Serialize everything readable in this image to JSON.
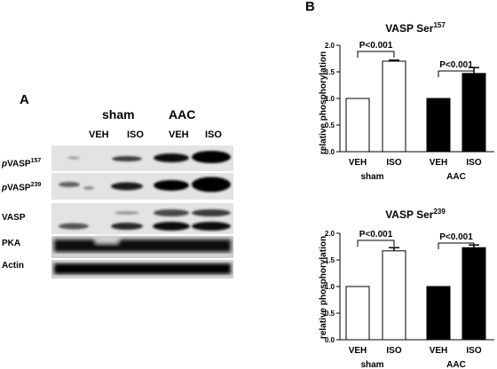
{
  "panel_a": {
    "letter": "A",
    "groups": [
      "sham",
      "AAC"
    ],
    "lanes": [
      "VEH",
      "ISO",
      "VEH",
      "ISO"
    ],
    "rows": [
      {
        "prefix": "p",
        "name": "VASP",
        "sup": "157"
      },
      {
        "prefix": "p",
        "name": "VASP",
        "sup": "239"
      },
      {
        "prefix": "",
        "name": "VASP",
        "sup": ""
      },
      {
        "prefix": "",
        "name": "PKA",
        "sup": ""
      },
      {
        "prefix": "",
        "name": "Actin",
        "sup": ""
      }
    ]
  },
  "panel_b": {
    "letter": "B"
  },
  "chart_data": [
    {
      "type": "bar",
      "title": "VASP Ser",
      "title_sup": "157",
      "ylabel": "relative phosphorylation",
      "ylim": [
        0,
        2.0
      ],
      "yticks": [
        "0.0",
        "0.5",
        "1.0",
        "1.5",
        "2.0"
      ],
      "categories": [
        "VEH",
        "ISO",
        "VEH",
        "ISO"
      ],
      "groups": [
        "sham",
        "AAC"
      ],
      "values": [
        1.0,
        1.7,
        1.0,
        1.47
      ],
      "errors": [
        0,
        0.02,
        0,
        0.11
      ],
      "fills": [
        "#ffffff",
        "#ffffff",
        "#000000",
        "#000000"
      ],
      "annotations": [
        "P<0.001",
        "P<0.001"
      ]
    },
    {
      "type": "bar",
      "title": "VASP Ser",
      "title_sup": "239",
      "ylabel": "relative phosphorylation",
      "ylim": [
        0,
        2.0
      ],
      "yticks": [
        "0.0",
        "0.5",
        "1.0",
        "1.5",
        "2.0"
      ],
      "categories": [
        "VEH",
        "ISO",
        "VEH",
        "ISO"
      ],
      "groups": [
        "sham",
        "AAC"
      ],
      "values": [
        1.0,
        1.67,
        1.0,
        1.73
      ],
      "errors": [
        0,
        0.06,
        0,
        0.05
      ],
      "fills": [
        "#ffffff",
        "#ffffff",
        "#000000",
        "#000000"
      ],
      "annotations": [
        "P<0.001",
        "P<0.001"
      ]
    }
  ]
}
